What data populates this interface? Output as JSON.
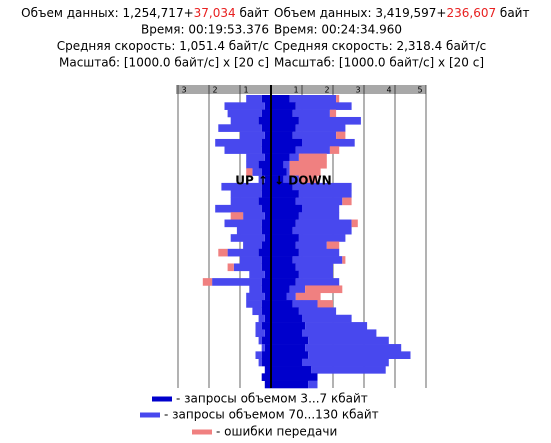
{
  "chart_data": {
    "type": "mirrored_bar",
    "up": {
      "title": "UP ↑",
      "xlim": [
        0,
        3.1
      ],
      "xticks": [
        1,
        2,
        3
      ],
      "stats": [
        [
          {
            "text": "Объем данных: 1,254,717+"
          },
          {
            "text": "37,034",
            "color": "#e82020"
          },
          {
            "text": " байт"
          }
        ],
        [
          {
            "text": "Время: 00:19:53.376"
          }
        ],
        [
          {
            "text": "Средняя скорость: 1,051.4 байт/с"
          }
        ],
        [
          {
            "text": "Масштаб: [1000.0 байт/с] x [20 с]"
          }
        ]
      ]
    },
    "down": {
      "title": "↓ DOWN",
      "xlim": [
        0,
        4.9
      ],
      "xticks": [
        1,
        2,
        3,
        4,
        5
      ],
      "stats": [
        [
          {
            "text": "Объем данных: 3,419,597+"
          },
          {
            "text": "236,607",
            "color": "#e82020"
          },
          {
            "text": " байт"
          }
        ],
        [
          {
            "text": "Время: 00:24:34.960"
          }
        ],
        [
          {
            "text": "Средняя скорость: 2,318.4 байт/с"
          }
        ],
        [
          {
            "text": "Масштаб: [1000.0 байт/с] x [20 с]"
          }
        ]
      ]
    },
    "series": [
      {
        "name": "- запросы объемом 3...7 кбайт",
        "color": "#0000cc",
        "up": [
          0.3,
          0.2,
          0.3,
          0.4,
          0.3,
          0.2,
          0.3,
          0.3,
          0.2,
          0.4,
          0.3,
          0.2,
          0.3,
          0.3,
          0.4,
          0.3,
          0.2,
          0.3,
          0.3,
          0.2,
          0.3,
          0.4,
          0.3,
          0.3,
          0.2,
          0.3,
          0.3,
          0.2,
          0.3,
          0.3,
          0.2,
          0.3,
          0.2,
          0.3,
          0.2,
          0.3,
          0.3,
          0.2,
          0.3,
          0.2
        ],
        "down": [
          0.6,
          0.8,
          0.7,
          0.9,
          0.8,
          0.7,
          1.0,
          0.8,
          0.6,
          0.4,
          0.5,
          0.4,
          0.7,
          0.9,
          0.8,
          1.0,
          0.9,
          0.8,
          0.7,
          0.9,
          0.8,
          0.9,
          0.7,
          0.8,
          0.9,
          0.8,
          0.6,
          0.5,
          0.7,
          0.9,
          1.0,
          1.1,
          1.0,
          1.2,
          1.1,
          1.2,
          1.0,
          1.3,
          1.5,
          1.2
        ]
      },
      {
        "name": "- запросы объемом 70...130 кбайт",
        "color": "#4848ee",
        "up": [
          0.5,
          1.3,
          1.1,
          0.9,
          1.4,
          0.8,
          1.5,
          1.2,
          0.6,
          0.4,
          0.3,
          0.2,
          1.3,
          1.0,
          0.9,
          1.5,
          0.7,
          1.2,
          0.8,
          1.1,
          0.6,
          1.0,
          0.7,
          0.9,
          0.5,
          1.6,
          0.4,
          0.6,
          0.5,
          0.3,
          0.2,
          0.2,
          0.3,
          0.1,
          0.1,
          0.2,
          0.1,
          0,
          0,
          0
        ],
        "down": [
          1.5,
          1.8,
          1.2,
          2.0,
          1.6,
          1.4,
          1.7,
          1.1,
          0.3,
          0.2,
          0.1,
          0.5,
          1.9,
          1.7,
          1.5,
          1.2,
          1.3,
          1.8,
          1.9,
          1.5,
          1.0,
          1.3,
          1.6,
          1.2,
          1.1,
          1.4,
          0.5,
          0.3,
          0.8,
          1.2,
          1.6,
          2.0,
          2.4,
          2.6,
          3.1,
          3.3,
          2.8,
          2.4,
          0,
          0.3
        ]
      },
      {
        "name": "- ошибки передачи",
        "color": "#f08080",
        "up": [
          0,
          0,
          0,
          0,
          0,
          0,
          0,
          0,
          0,
          0,
          0.2,
          0,
          0,
          0,
          0,
          0,
          0.4,
          0,
          0,
          0,
          0,
          0.3,
          0,
          0.2,
          0,
          0.3,
          0,
          0,
          0,
          0,
          0,
          0,
          0,
          0,
          0,
          0,
          0,
          0,
          0,
          0
        ],
        "down": [
          0.1,
          0,
          0.2,
          0,
          0,
          0.3,
          0,
          0.3,
          0.9,
          1.2,
          1.0,
          0.6,
          0,
          0,
          0.3,
          0,
          0,
          0.2,
          0,
          0,
          0.4,
          0,
          0.1,
          0,
          0,
          0,
          1.2,
          0.8,
          0.5,
          0,
          0,
          0,
          0,
          0,
          0,
          0,
          0,
          0,
          0,
          0
        ]
      }
    ]
  }
}
